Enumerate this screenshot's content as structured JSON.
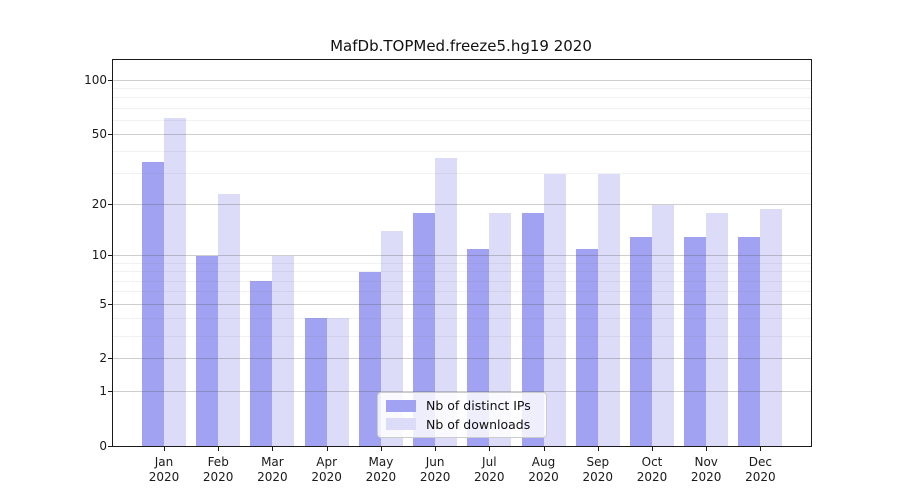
{
  "title": "MafDb.TOPMed.freeze5.hg19 2020",
  "chart_data": {
    "type": "bar",
    "title": "MafDb.TOPMed.freeze5.hg19 2020",
    "categories": [
      "Jan",
      "Feb",
      "Mar",
      "Apr",
      "May",
      "Jun",
      "Jul",
      "Aug",
      "Sep",
      "Oct",
      "Nov",
      "Dec"
    ],
    "x_tick_second_line": "2020",
    "series": [
      {
        "name": "Nb of distinct IPs",
        "color": "#a2a2f2",
        "values": [
          35,
          10,
          7,
          4,
          8,
          18,
          11,
          18,
          11,
          13,
          13,
          13
        ]
      },
      {
        "name": "Nb of downloads",
        "color": "#dcdcf9",
        "values": [
          62,
          23,
          10,
          4,
          14,
          37,
          18,
          30,
          30,
          20,
          18,
          19
        ]
      }
    ],
    "xlabel": "",
    "ylabel": "",
    "y_scale": "log10(1+value)",
    "y_ticks": [
      0,
      1,
      2,
      5,
      10,
      20,
      50,
      100
    ],
    "y_minor_ticks": [
      3,
      4,
      6,
      7,
      8,
      9,
      30,
      40,
      60,
      70,
      80,
      90
    ],
    "ylim": [
      0,
      128
    ],
    "grid": true,
    "legend_position": "lower center"
  }
}
